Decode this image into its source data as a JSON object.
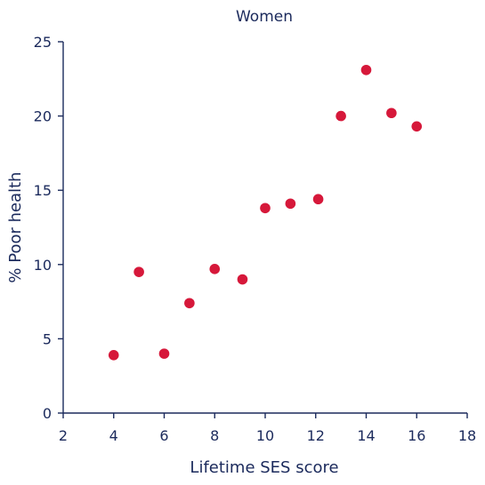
{
  "chart_data": {
    "type": "scatter",
    "title": "Women",
    "xlabel": "Lifetime SES score",
    "ylabel": "% Poor health",
    "xlim": [
      2,
      18
    ],
    "ylim": [
      0,
      25
    ],
    "x_ticks": [
      "2",
      "4",
      "6",
      "8",
      "10",
      "12",
      "14",
      "16",
      "18"
    ],
    "y_ticks": [
      "0",
      "5",
      "10",
      "15",
      "20",
      "25"
    ],
    "grid": false,
    "marker_color": "#d6183a",
    "axis_color": "#1b2a5c",
    "points": [
      {
        "x": 4,
        "y": 3.9
      },
      {
        "x": 5,
        "y": 9.5
      },
      {
        "x": 6,
        "y": 4.0
      },
      {
        "x": 7,
        "y": 7.4
      },
      {
        "x": 8,
        "y": 9.7
      },
      {
        "x": 9.1,
        "y": 9.0
      },
      {
        "x": 10,
        "y": 13.8
      },
      {
        "x": 11,
        "y": 14.1
      },
      {
        "x": 12.1,
        "y": 14.4
      },
      {
        "x": 13,
        "y": 20.0
      },
      {
        "x": 14,
        "y": 23.1
      },
      {
        "x": 15,
        "y": 20.2
      },
      {
        "x": 16,
        "y": 19.3
      }
    ]
  }
}
